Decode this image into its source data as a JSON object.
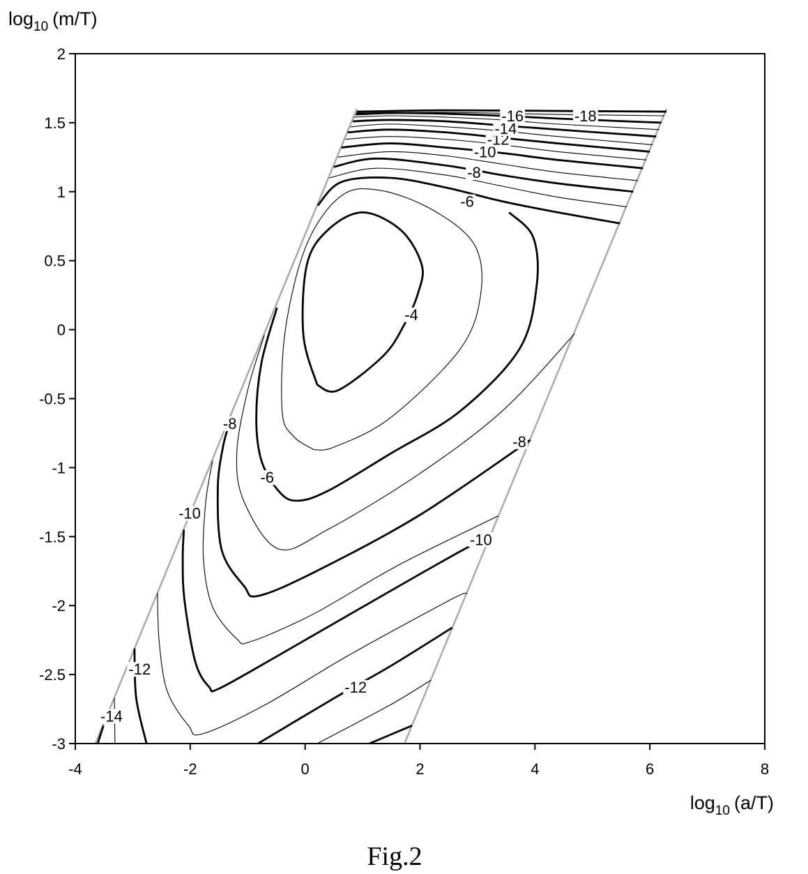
{
  "chart_data": {
    "type": "contour",
    "x_label": {
      "text": "log",
      "subscript": "10",
      "unit": "(a/T)"
    },
    "y_label": {
      "text": "log",
      "subscript": "10",
      "unit": "(m/T)"
    },
    "caption": "Fig.2",
    "xlim": [
      -4,
      8
    ],
    "ylim": [
      -3,
      2
    ],
    "xticks": [
      -4,
      -2,
      0,
      2,
      4,
      6,
      8
    ],
    "yticks": [
      -3,
      -2.5,
      -2,
      -1.5,
      -1,
      -0.5,
      0,
      0.5,
      1,
      1.5,
      2
    ],
    "grid": false,
    "line_color": "#000000",
    "boundary": {
      "color": "#aaaaaa",
      "x": [
        -3.65,
        0.9,
        null,
        1.73,
        6.29
      ],
      "y": [
        -3,
        1.6,
        null,
        -3,
        1.6
      ]
    },
    "contours": [
      {
        "level": -4,
        "bold": true,
        "x": [
          0.21,
          -0.03,
          0.03,
          0.39,
          1.0,
          1.67,
          2.03,
          1.97,
          1.73,
          1.36,
          0.57,
          0.21
        ],
        "y": [
          -0.4,
          -0.04,
          0.47,
          0.72,
          0.85,
          0.72,
          0.47,
          0.27,
          0.04,
          -0.19,
          -0.44,
          -0.4
        ]
      },
      {
        "level": -5,
        "bold": false,
        "x": [
          0.15,
          -0.21,
          -0.4,
          -0.34,
          0.03,
          0.63,
          1.3,
          2.21,
          2.94,
          3.06,
          2.7,
          1.48,
          0.51,
          0.15
        ],
        "y": [
          -0.87,
          -0.77,
          -0.59,
          0.01,
          0.62,
          0.97,
          1.01,
          0.87,
          0.62,
          0.27,
          -0.14,
          -0.64,
          -0.85,
          -0.87
        ]
      },
      {
        "level": -6,
        "bold": true,
        "x": [
          3.55,
          3.97,
          4.03,
          3.73,
          2.7,
          1.48,
          0.39,
          -0.15,
          -0.46,
          -0.76,
          -0.85,
          -0.76,
          -0.49,
          null,
          0.22,
          0.63,
          1.48,
          2.45,
          3.43,
          4.4,
          5.48
        ],
        "y": [
          0.85,
          0.67,
          0.32,
          -0.14,
          -0.59,
          -0.9,
          -1.17,
          -1.24,
          -1.17,
          -0.95,
          -0.64,
          -0.24,
          0.16,
          null,
          0.9,
          1.07,
          1.1,
          1.03,
          0.93,
          0.85,
          0.77
        ]
      },
      {
        "level": -7,
        "bold": false,
        "x": [
          -0.71,
          -1.0,
          -1.19,
          -1.06,
          -0.46,
          0.39,
          1.97,
          3.43,
          4.69,
          null,
          0.42,
          1.24,
          2.45,
          3.43,
          4.4,
          5.6
        ],
        "y": [
          -0.04,
          -0.44,
          -0.9,
          -1.25,
          -1.59,
          -1.45,
          -1.05,
          -0.59,
          -0.03,
          null,
          1.1,
          1.17,
          1.12,
          1.04,
          0.96,
          0.89
        ]
      },
      {
        "level": -8,
        "bold": true,
        "x": [
          -1.31,
          -1.43,
          -1.52,
          -1.45,
          -1.06,
          -0.82,
          0.15,
          1.97,
          3.92,
          null,
          0.5,
          1.24,
          2.45,
          3.43,
          4.4,
          5.71
        ],
        "y": [
          -0.67,
          -0.85,
          -1.15,
          -1.6,
          -1.86,
          -1.93,
          -1.76,
          -1.35,
          -0.8,
          null,
          1.18,
          1.24,
          1.19,
          1.12,
          1.06,
          1.0
        ]
      },
      {
        "level": -9,
        "bold": false,
        "x": [
          -1.61,
          -1.73,
          -1.77,
          -1.61,
          -1.19,
          -0.94,
          0.15,
          1.61,
          3.36,
          null,
          0.57,
          1.48,
          2.45,
          3.43,
          4.4,
          5.79
        ],
        "y": [
          -0.95,
          -1.25,
          -1.66,
          -2.01,
          -2.24,
          -2.26,
          -2.06,
          -1.71,
          -1.35,
          null,
          1.25,
          1.29,
          1.26,
          1.2,
          1.14,
          1.08
        ]
      },
      {
        "level": -10,
        "bold": true,
        "x": [
          -2.11,
          -2.13,
          -2.1,
          -1.91,
          -1.67,
          -1.49,
          -0.46,
          1.0,
          2.82,
          3.19,
          null,
          0.63,
          1.48,
          2.45,
          3.43,
          4.4,
          5.88
        ],
        "y": [
          -1.45,
          -1.66,
          -1.96,
          -2.41,
          -2.59,
          -2.6,
          -2.36,
          -2.01,
          -1.58,
          -1.53,
          null,
          1.32,
          1.35,
          1.32,
          1.28,
          1.23,
          1.17
        ]
      },
      {
        "level": -11,
        "bold": false,
        "x": [
          -2.57,
          -2.54,
          -2.4,
          -2.03,
          -1.79,
          -0.7,
          0.76,
          2.52,
          2.82,
          null,
          0.7,
          1.48,
          2.45,
          3.43,
          4.4,
          5.94
        ],
        "y": [
          -1.91,
          -2.26,
          -2.62,
          -2.87,
          -2.93,
          -2.72,
          -2.36,
          -1.96,
          -1.91,
          null,
          1.38,
          1.4,
          1.38,
          1.34,
          1.29,
          1.23
        ]
      },
      {
        "level": -12,
        "bold": true,
        "x": [
          -2.97,
          -2.94,
          -2.76,
          null,
          -0.82,
          0.51,
          1.48,
          2.56,
          null,
          0.74,
          1.48,
          2.45,
          3.43,
          4.4,
          6.0
        ],
        "y": [
          -2.31,
          -2.67,
          -3.0,
          null,
          -3.0,
          -2.67,
          -2.44,
          -2.16,
          null,
          1.43,
          1.45,
          1.43,
          1.39,
          1.35,
          1.29
        ]
      },
      {
        "level": -13,
        "bold": false,
        "x": [
          -3.32,
          -3.31,
          null,
          0.21,
          1.48,
          2.19,
          null,
          0.79,
          1.48,
          2.45,
          3.43,
          4.4,
          6.05
        ],
        "y": [
          -2.67,
          -3.0,
          null,
          -3.0,
          -2.72,
          -2.54,
          null,
          1.47,
          1.49,
          1.47,
          1.44,
          1.4,
          1.34
        ]
      },
      {
        "level": -14,
        "bold": true,
        "x": [
          -3.51,
          -3.61,
          null,
          1.12,
          1.86,
          null,
          0.83,
          1.48,
          2.45,
          3.43,
          4.4,
          6.11
        ],
        "y": [
          -2.87,
          -3.0,
          null,
          -3.0,
          -2.87,
          null,
          1.51,
          1.52,
          1.51,
          1.48,
          1.45,
          1.4
        ]
      },
      {
        "level": -15,
        "bold": false,
        "x": [
          0.85,
          1.48,
          2.45,
          3.43,
          4.4,
          6.16
        ],
        "y": [
          1.54,
          1.55,
          1.54,
          1.52,
          1.49,
          1.45
        ]
      },
      {
        "level": -16,
        "bold": true,
        "x": [
          0.88,
          1.48,
          2.45,
          3.43,
          4.4,
          6.2
        ],
        "y": [
          1.56,
          1.57,
          1.565,
          1.55,
          1.53,
          1.5
        ]
      },
      {
        "level": -17,
        "bold": false,
        "x": [
          0.89,
          2.45,
          4.4,
          6.25
        ],
        "y": [
          1.57,
          1.575,
          1.56,
          1.55
        ]
      },
      {
        "level": -18,
        "bold": true,
        "x": [
          0.9,
          2.45,
          4.4,
          6.29
        ],
        "y": [
          1.58,
          1.59,
          1.585,
          1.58
        ]
      }
    ],
    "contour_labels": [
      {
        "level": -4,
        "x": 1.85,
        "y": 0.11
      },
      {
        "level": -6,
        "x": -0.66,
        "y": -1.07
      },
      {
        "level": -6,
        "x": 2.82,
        "y": 0.93
      },
      {
        "level": -8,
        "x": -1.31,
        "y": -0.68
      },
      {
        "level": -8,
        "x": 2.94,
        "y": 1.14
      },
      {
        "level": -8,
        "x": 3.73,
        "y": -0.81
      },
      {
        "level": -10,
        "x": -2.01,
        "y": -1.33
      },
      {
        "level": -10,
        "x": 3.13,
        "y": 1.29
      },
      {
        "level": -10,
        "x": 3.06,
        "y": -1.52
      },
      {
        "level": -12,
        "x": -2.88,
        "y": -2.46
      },
      {
        "level": -12,
        "x": 0.88,
        "y": -2.59
      },
      {
        "level": -12,
        "x": 3.36,
        "y": 1.38
      },
      {
        "level": -14,
        "x": -3.37,
        "y": -2.8
      },
      {
        "level": -14,
        "x": 3.49,
        "y": 1.46
      },
      {
        "level": -16,
        "x": 3.61,
        "y": 1.55
      },
      {
        "level": -18,
        "x": 4.88,
        "y": 1.55
      }
    ]
  }
}
